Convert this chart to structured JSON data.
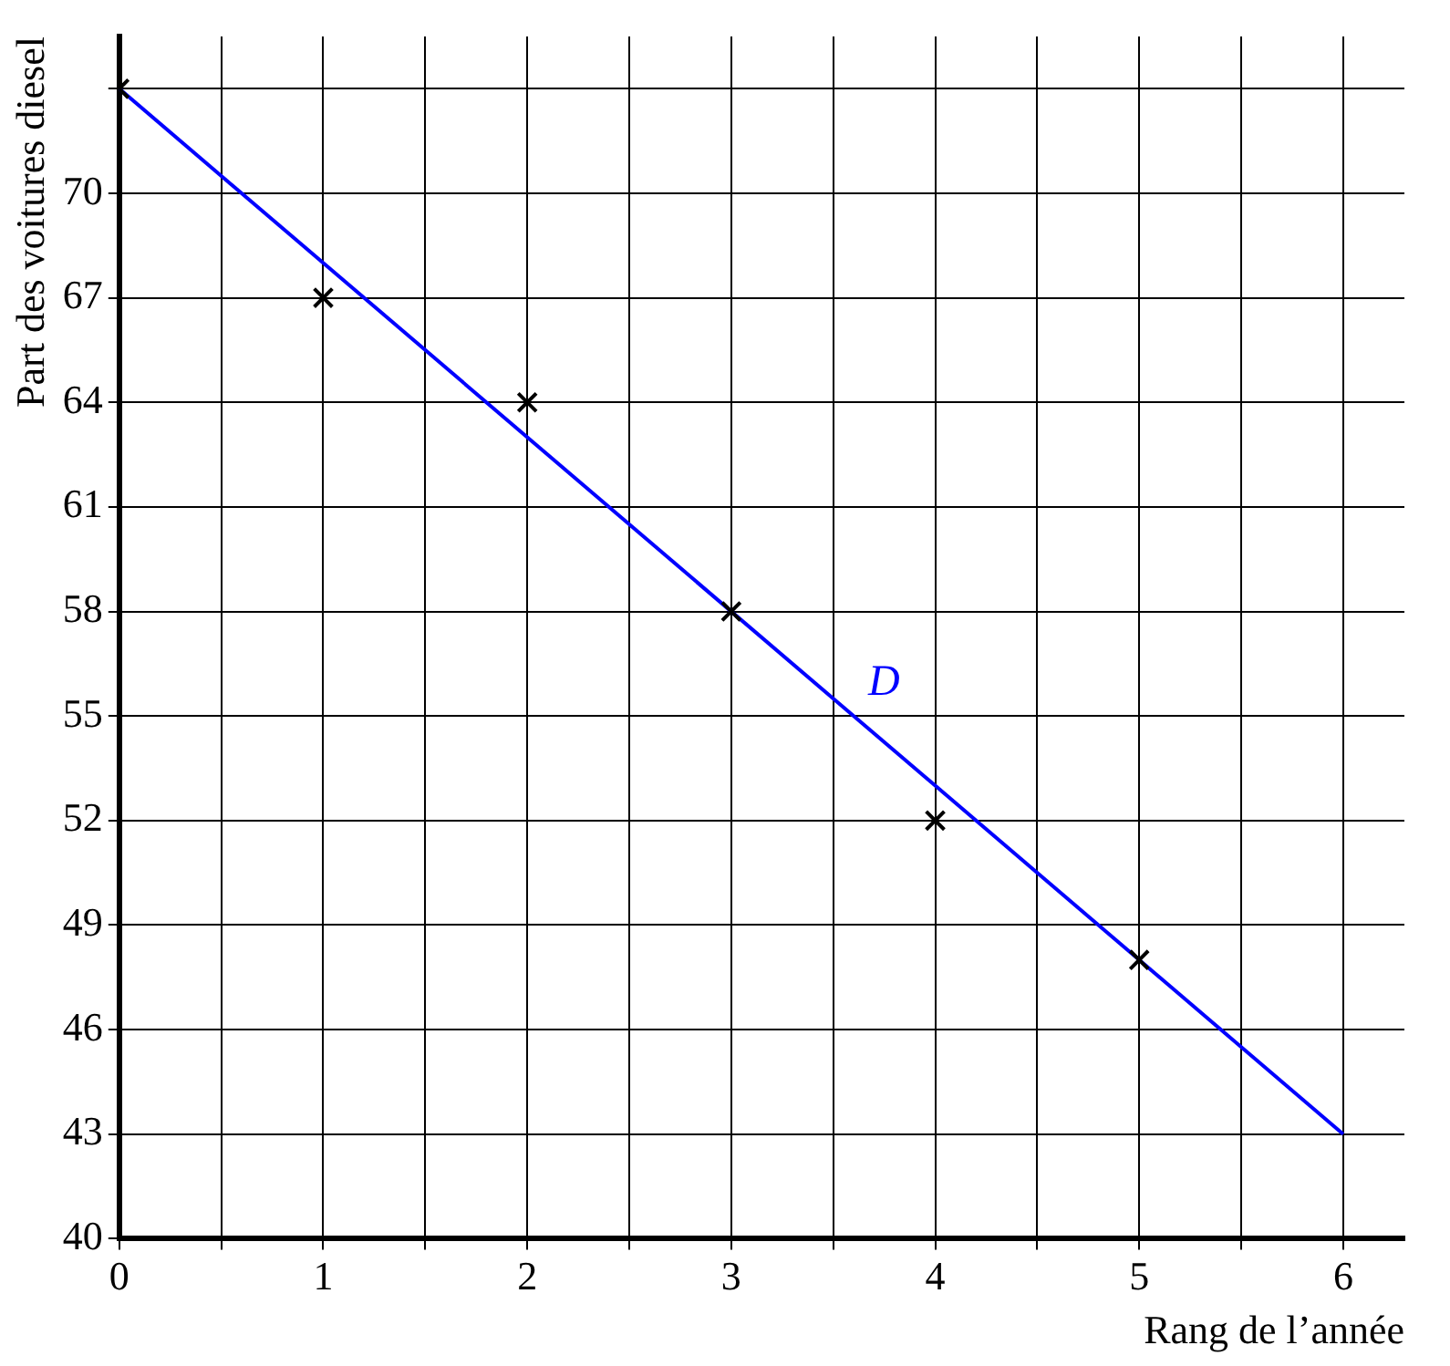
{
  "chart_data": {
    "type": "scatter",
    "xlabel": "Rang de l’année",
    "ylabel": "Part des voitures diesel",
    "xlim": [
      0,
      6.3
    ],
    "ylim": [
      40,
      74.5
    ],
    "xticks": [
      0,
      {
        "value": 0.5,
        "label": null
      },
      1,
      {
        "value": 1.5,
        "label": null
      },
      2,
      {
        "value": 2.5,
        "label": null
      },
      3,
      {
        "value": 3.5,
        "label": null
      },
      4,
      {
        "value": 4.5,
        "label": null
      },
      5,
      {
        "value": 5.5,
        "label": null
      },
      6
    ],
    "yticks": [
      40,
      43,
      46,
      49,
      52,
      55,
      58,
      61,
      64,
      67,
      70,
      {
        "value": 73,
        "label": null
      }
    ],
    "grid": true,
    "legend": false,
    "series": [
      {
        "color": "#000000",
        "marker": "cross",
        "x": [
          0,
          1,
          2,
          3,
          4,
          5
        ],
        "values": [
          73,
          67,
          64,
          58,
          52,
          48
        ]
      },
      {
        "type": "line",
        "name": "D",
        "color": "#0000ff",
        "marker": "none",
        "line_style": "solid",
        "x": [
          0,
          6
        ],
        "values": [
          73,
          43
        ]
      }
    ]
  }
}
